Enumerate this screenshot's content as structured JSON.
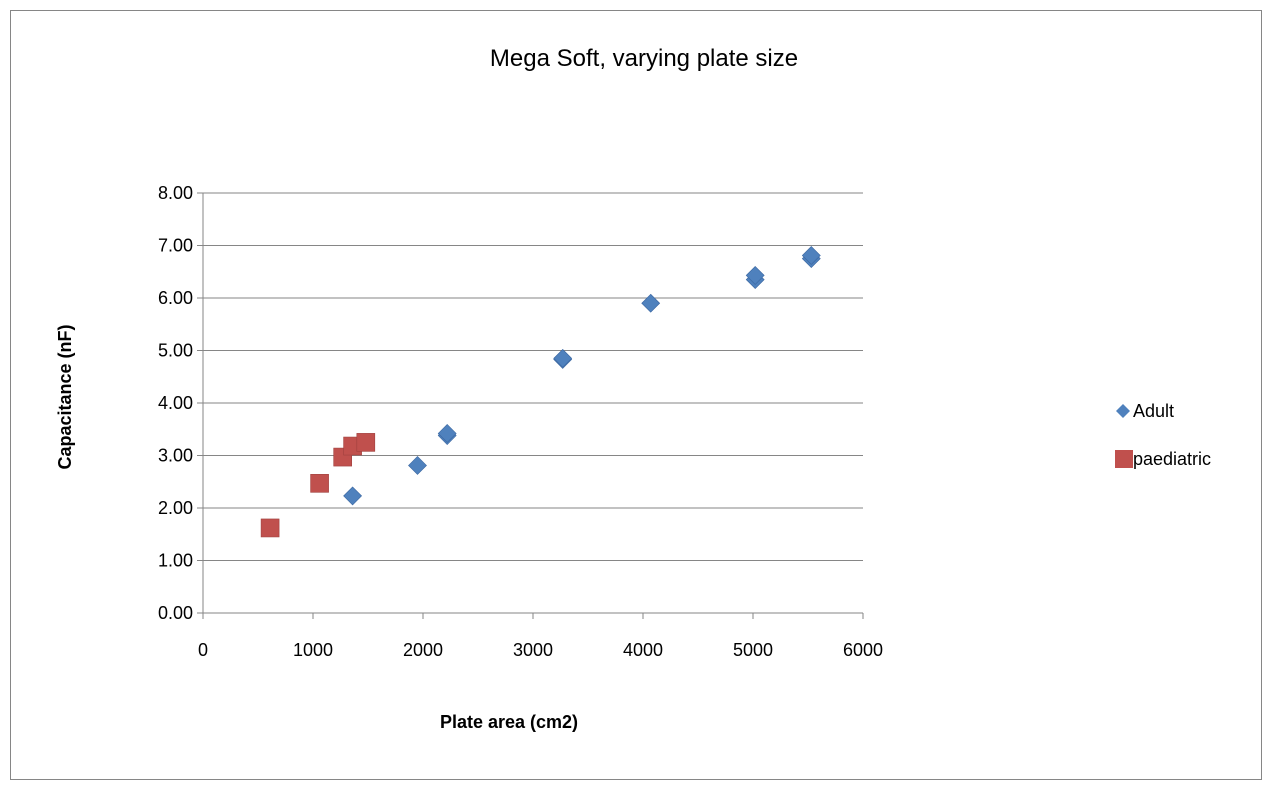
{
  "chart_data": {
    "type": "scatter",
    "title": "Mega Soft, varying plate size",
    "xlabel": "Plate area (cm2)",
    "ylabel": "Capacitance (nF)",
    "xlim": [
      0,
      6000
    ],
    "ylim": [
      0,
      8
    ],
    "x_ticks": [
      "0",
      "1000",
      "2000",
      "3000",
      "4000",
      "5000",
      "6000"
    ],
    "y_ticks": [
      "0.00",
      "1.00",
      "2.00",
      "3.00",
      "4.00",
      "5.00",
      "6.00",
      "7.00",
      "8.00"
    ],
    "grid": "horizontal",
    "legend_position": "right",
    "series": [
      {
        "name": "Adult",
        "marker": "diamond",
        "color": "#4F81BD",
        "points": [
          {
            "x": 1360,
            "y": 2.23
          },
          {
            "x": 1950,
            "y": 2.81
          },
          {
            "x": 2220,
            "y": 3.38
          },
          {
            "x": 2220,
            "y": 3.42
          },
          {
            "x": 3270,
            "y": 4.83
          },
          {
            "x": 3270,
            "y": 4.85
          },
          {
            "x": 4070,
            "y": 5.9
          },
          {
            "x": 5020,
            "y": 6.35
          },
          {
            "x": 5020,
            "y": 6.43
          },
          {
            "x": 5530,
            "y": 6.75
          },
          {
            "x": 5530,
            "y": 6.81
          }
        ]
      },
      {
        "name": "paediatric",
        "marker": "square",
        "color": "#C0504D",
        "points": [
          {
            "x": 610,
            "y": 1.62
          },
          {
            "x": 1060,
            "y": 2.47
          },
          {
            "x": 1270,
            "y": 2.97
          },
          {
            "x": 1360,
            "y": 3.18
          },
          {
            "x": 1480,
            "y": 3.25
          }
        ]
      }
    ]
  }
}
